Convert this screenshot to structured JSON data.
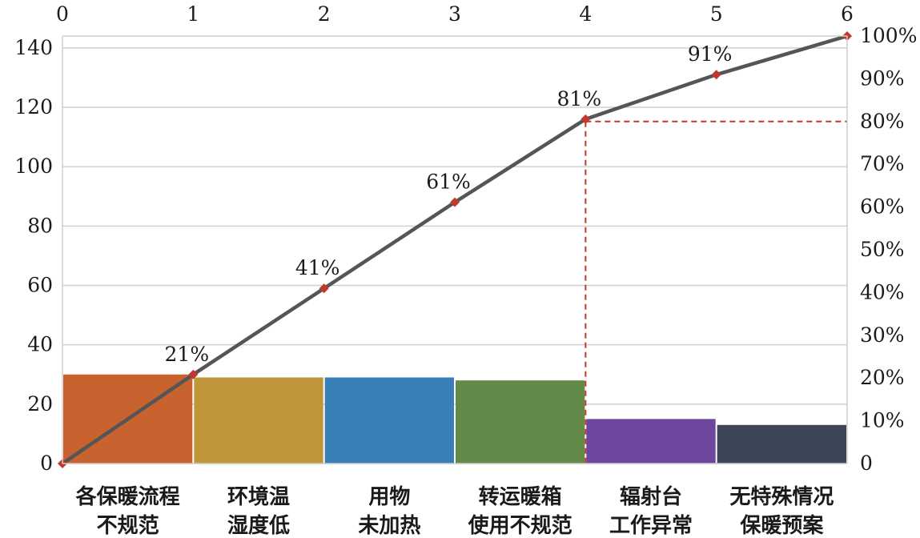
{
  "chart_data": {
    "type": "bar",
    "subtype": "pareto",
    "categories": [
      [
        "各保暖流程",
        "不规范"
      ],
      [
        "环境温",
        "湿度低"
      ],
      [
        "用物",
        "未加热"
      ],
      [
        "转运暖箱",
        "使用不规范"
      ],
      [
        "辐射台",
        "工作异常"
      ],
      [
        "无特殊情况",
        "保暖预案"
      ]
    ],
    "values": [
      30,
      29,
      29,
      28,
      15,
      13
    ],
    "bar_colors": [
      "#c8622e",
      "#c0963a",
      "#3a80b8",
      "#638a48",
      "#6e46a0",
      "#3c4656"
    ],
    "cumulative": {
      "x": [
        0,
        1,
        2,
        3,
        4,
        5,
        6
      ],
      "y": [
        0,
        30,
        59,
        88,
        116,
        131,
        144
      ],
      "labels": [
        "",
        "21%",
        "41%",
        "61%",
        "81%",
        "91%",
        ""
      ],
      "line_color": "#555555",
      "marker_color": "#c0392b"
    },
    "y_left": {
      "lim": [
        0,
        144
      ],
      "ticks": [
        "0",
        "20",
        "40",
        "60",
        "80",
        "100",
        "120",
        "140"
      ],
      "tick_values": [
        0,
        20,
        40,
        60,
        80,
        100,
        120,
        140
      ]
    },
    "y_right": {
      "lim": [
        0,
        100
      ],
      "ticks": [
        "0",
        "10%",
        "20%",
        "30%",
        "40%",
        "50%",
        "60%",
        "70%",
        "80%",
        "90%",
        "100%"
      ],
      "tick_values": [
        0,
        10,
        20,
        30,
        40,
        50,
        60,
        70,
        80,
        90,
        100
      ]
    },
    "x_top": {
      "ticks": [
        "0",
        "1",
        "2",
        "3",
        "4",
        "5",
        "6"
      ],
      "tick_values": [
        0,
        1,
        2,
        3,
        4,
        5,
        6
      ]
    },
    "reference": {
      "cum_pct": 80,
      "x": 4,
      "color": "#c0392b"
    },
    "grid": true
  }
}
